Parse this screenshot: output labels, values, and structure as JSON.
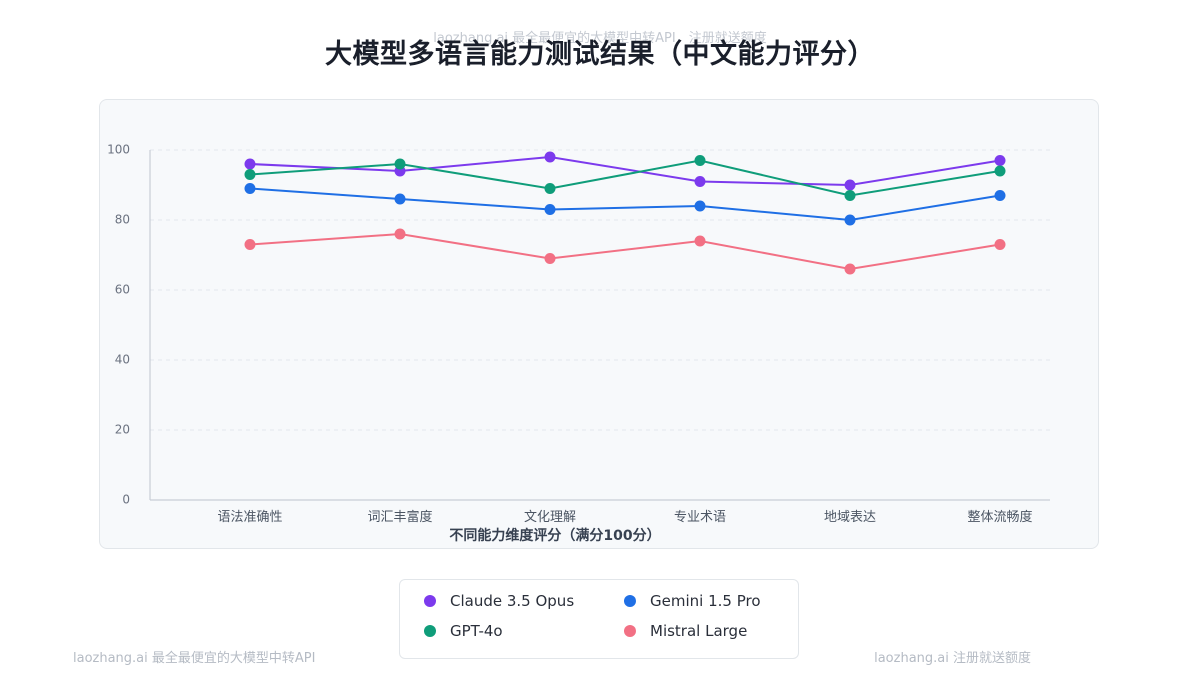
{
  "watermarks": {
    "top": "laozhang.ai 最全最便宜的大模型中转API，注册就送额度",
    "bottom_left": "laozhang.ai 最全最便宜的大模型中转API",
    "bottom_right": "laozhang.ai 注册就送额度"
  },
  "chart_data": {
    "type": "line",
    "title": "大模型多语言能力测试结果（中文能力评分）",
    "xlabel": "不同能力维度评分（满分100分）",
    "ylabel": "",
    "ylim": [
      0,
      100
    ],
    "yticks": [
      0,
      20,
      40,
      60,
      80,
      100
    ],
    "grid": true,
    "legend_position": "bottom",
    "categories": [
      "语法准确性",
      "词汇丰富度",
      "文化理解",
      "专业术语",
      "地域表达",
      "整体流畅度"
    ],
    "series": [
      {
        "name": "Claude 3.5 Opus",
        "color": "#7c3aed",
        "values": [
          96,
          94,
          98,
          91,
          90,
          97
        ]
      },
      {
        "name": "GPT-4o",
        "color": "#0f9d7a",
        "values": [
          93,
          96,
          89,
          97,
          87,
          94
        ]
      },
      {
        "name": "Gemini 1.5 Pro",
        "color": "#1f6fe5",
        "values": [
          89,
          86,
          83,
          84,
          80,
          87
        ]
      },
      {
        "name": "Mistral Large",
        "color": "#f27084",
        "values": [
          73,
          76,
          69,
          74,
          66,
          73
        ]
      }
    ]
  }
}
